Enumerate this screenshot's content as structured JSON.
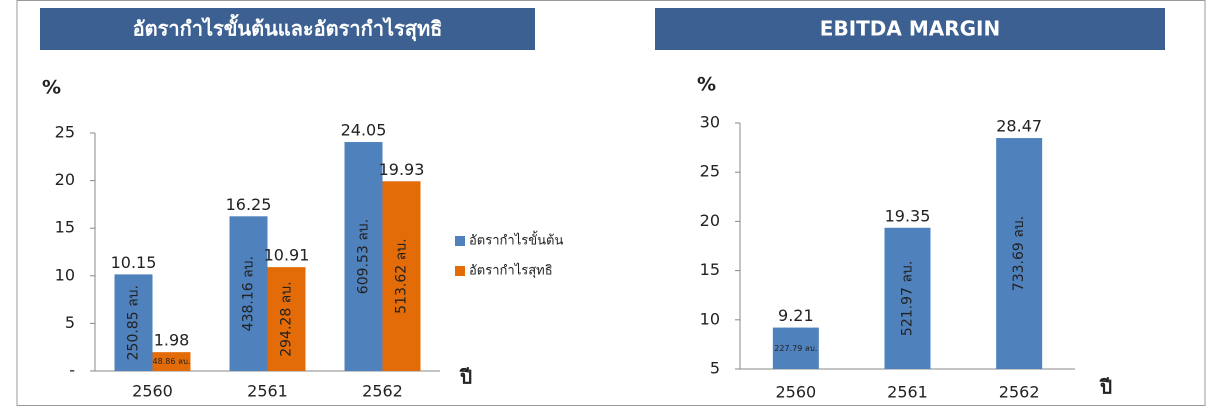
{
  "chart_data": [
    {
      "type": "bar",
      "title": "อัตรากำไรขั้นต้นและอัตรากำไรสุทธิ",
      "y_label": "%",
      "x_label": "ปี",
      "categories": [
        "2560",
        "2561",
        "2562"
      ],
      "series": [
        {
          "name": "อัตรากำไรขั้นต้น",
          "color": "#4f81bd",
          "values": [
            10.15,
            16.25,
            24.05
          ],
          "amount_labels": [
            "250.85 ลบ.",
            "438.16 ลบ.",
            "609.53 ลบ."
          ]
        },
        {
          "name": "อัตรากำไรสุทธิ",
          "color": "#e36c09",
          "values": [
            1.98,
            10.91,
            19.93
          ],
          "amount_labels": [
            "48.86 ลบ.",
            "294.28 ลบ.",
            "513.62 ลบ."
          ]
        }
      ],
      "ylim": [
        0,
        25
      ],
      "yticks": [
        {
          "value": 0,
          "label": "-"
        },
        5,
        10,
        15,
        20,
        25
      ],
      "grid": false,
      "legend": "right"
    },
    {
      "type": "bar",
      "title": "EBITDA MARGIN",
      "y_label": "%",
      "x_label": "ปี",
      "categories": [
        "2560",
        "2561",
        "2562"
      ],
      "values": [
        9.21,
        19.35,
        28.47
      ],
      "color": "#4f81bd",
      "amount_labels": [
        "227.79 ลบ.",
        "521.97 ลบ.",
        "733.69 ลบ."
      ],
      "ylim": [
        5,
        30
      ],
      "yticks": [
        5,
        10,
        15,
        20,
        25,
        30
      ],
      "grid": false
    }
  ]
}
